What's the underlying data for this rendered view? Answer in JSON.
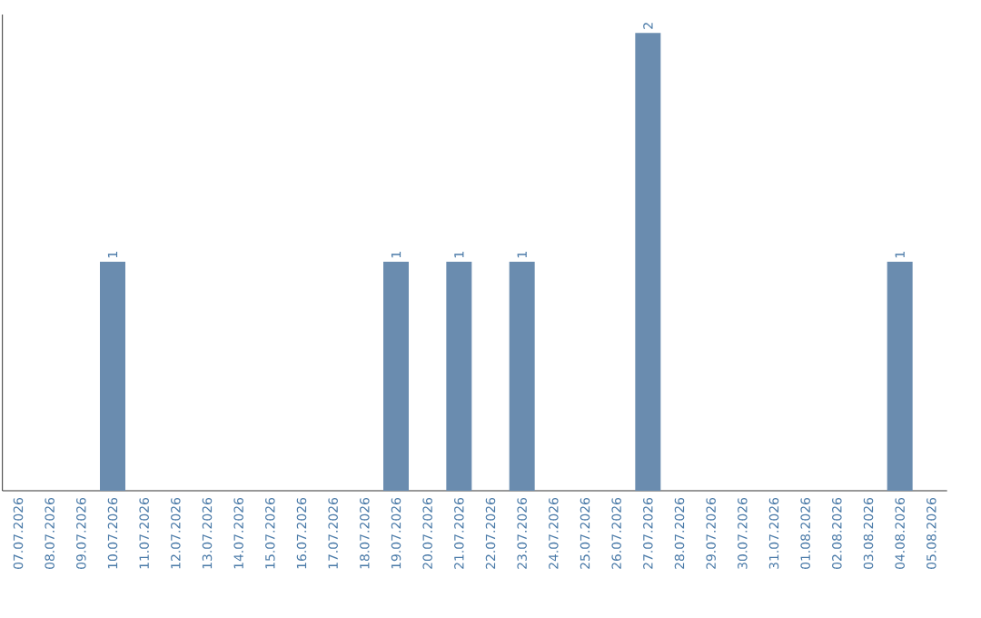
{
  "chart_data": {
    "type": "bar",
    "categories": [
      "07.07.2026",
      "08.07.2026",
      "09.07.2026",
      "10.07.2026",
      "11.07.2026",
      "12.07.2026",
      "13.07.2026",
      "14.07.2026",
      "15.07.2026",
      "16.07.2026",
      "17.07.2026",
      "18.07.2026",
      "19.07.2026",
      "20.07.2026",
      "21.07.2026",
      "22.07.2026",
      "23.07.2026",
      "24.07.2026",
      "25.07.2026",
      "26.07.2026",
      "27.07.2026",
      "28.07.2026",
      "29.07.2026",
      "30.07.2026",
      "31.07.2026",
      "01.08.2026",
      "02.08.2026",
      "03.08.2026",
      "04.08.2026",
      "05.08.2026"
    ],
    "values": [
      0,
      0,
      0,
      1,
      0,
      0,
      0,
      0,
      0,
      0,
      0,
      0,
      1,
      0,
      1,
      0,
      1,
      0,
      0,
      0,
      2,
      0,
      0,
      0,
      0,
      0,
      0,
      0,
      1,
      0
    ],
    "value_labels": [
      null,
      null,
      null,
      "1",
      null,
      null,
      null,
      null,
      null,
      null,
      null,
      null,
      "1",
      null,
      "1",
      null,
      "1",
      null,
      null,
      null,
      "2",
      null,
      null,
      null,
      null,
      null,
      null,
      null,
      "1",
      null
    ],
    "color": "#6a8caf"
  }
}
